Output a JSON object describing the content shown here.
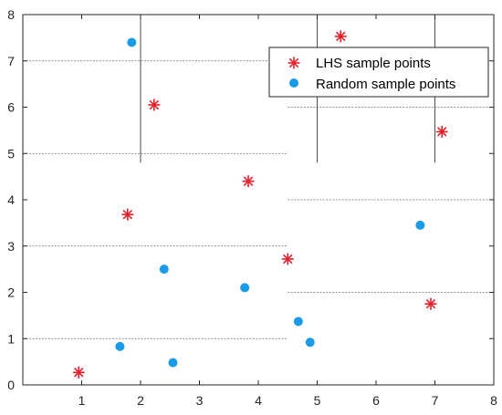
{
  "chart_data": {
    "type": "scatter",
    "title": "",
    "xlabel": "",
    "ylabel": "",
    "xlim": [
      0,
      8
    ],
    "ylim": [
      0,
      8
    ],
    "xticks": [
      1,
      2,
      3,
      4,
      5,
      6,
      7,
      8
    ],
    "yticks": [
      0,
      1,
      2,
      3,
      4,
      5,
      6,
      7,
      8
    ],
    "x_tick_labels": [
      "1",
      "2",
      "3",
      "4",
      "5",
      "6",
      "7",
      "8"
    ],
    "y_tick_labels": [
      "0",
      "1",
      "2",
      "3",
      "4",
      "5",
      "6",
      "7",
      "8"
    ],
    "grid": false,
    "legend_position": "top-right",
    "series": [
      {
        "name": "LHS sample points",
        "marker": "asterisk",
        "color": "#e8202a",
        "points": [
          {
            "x": 0.95,
            "y": 0.27
          },
          {
            "x": 1.78,
            "y": 3.68
          },
          {
            "x": 2.23,
            "y": 6.05
          },
          {
            "x": 3.83,
            "y": 4.4
          },
          {
            "x": 4.5,
            "y": 2.72
          },
          {
            "x": 5.4,
            "y": 7.53
          },
          {
            "x": 6.93,
            "y": 1.75
          },
          {
            "x": 7.12,
            "y": 5.47
          }
        ]
      },
      {
        "name": "Random sample points",
        "marker": "circle",
        "color": "#1a9be8",
        "points": [
          {
            "x": 1.85,
            "y": 7.4
          },
          {
            "x": 1.65,
            "y": 0.83
          },
          {
            "x": 2.4,
            "y": 2.5
          },
          {
            "x": 2.55,
            "y": 0.48
          },
          {
            "x": 3.77,
            "y": 2.1
          },
          {
            "x": 4.68,
            "y": 1.37
          },
          {
            "x": 4.88,
            "y": 0.92
          },
          {
            "x": 6.75,
            "y": 3.45
          }
        ]
      }
    ],
    "partition_lines": {
      "horizontal": [
        {
          "y": 1,
          "x_from": 0,
          "x_to": 4.5
        },
        {
          "y": 3,
          "x_from": 0,
          "x_to": 4.5
        },
        {
          "y": 5,
          "x_from": 0,
          "x_to": 4.5
        },
        {
          "y": 7,
          "x_from": 0,
          "x_to": 4.5
        },
        {
          "y": 2,
          "x_from": 4.5,
          "x_to": 8
        },
        {
          "y": 4,
          "x_from": 4.5,
          "x_to": 8
        },
        {
          "y": 6,
          "x_from": 4.5,
          "x_to": 8
        },
        {
          "y": 7,
          "x_from": 4.5,
          "x_to": 8
        }
      ],
      "vertical": [
        {
          "x": 2,
          "y_from": 4.8,
          "y_to": 8
        },
        {
          "x": 5,
          "y_from": 4.8,
          "y_to": 8
        },
        {
          "x": 7,
          "y_from": 4.8,
          "y_to": 8
        }
      ]
    }
  }
}
